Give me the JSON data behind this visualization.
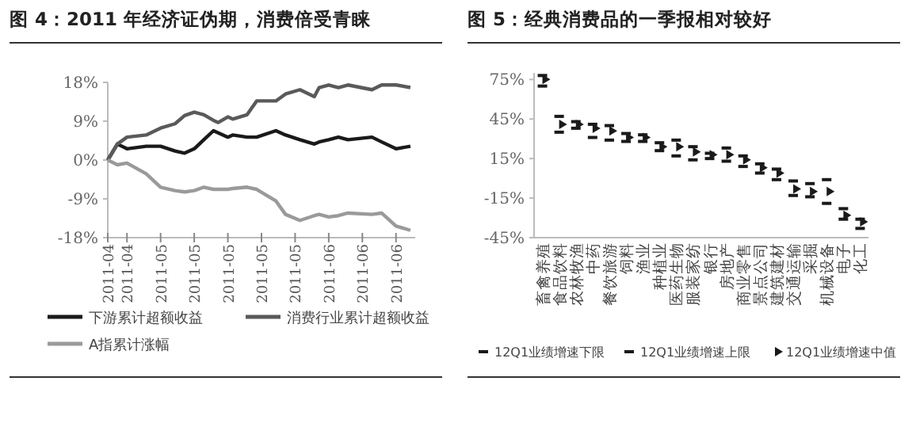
{
  "chart_data": [
    {
      "type": "line",
      "title": "图 4：2011 年经济证伪期，消费倍受青睐",
      "x": [
        "2011-04-21",
        "2011-04-23",
        "2011-04-25",
        "2011-04-29",
        "2011-05-02",
        "2011-05-05",
        "2011-05-07",
        "2011-05-09",
        "2011-05-11",
        "2011-05-13",
        "2011-05-14",
        "2011-05-16",
        "2011-05-17",
        "2011-05-20",
        "2011-05-22",
        "2011-05-26",
        "2011-05-28",
        "2011-05-31",
        "2011-06-03",
        "2011-06-04",
        "2011-06-06",
        "2011-06-08",
        "2011-06-10",
        "2011-06-15",
        "2011-06-17",
        "2011-06-20",
        "2011-06-23"
      ],
      "xlim": [
        "2011-04-21",
        "2011-06-24"
      ],
      "xticks": [
        {
          "value": "2011-04-21",
          "label": "2011-04"
        },
        {
          "value": "2011-04-25",
          "label": "2011-04"
        },
        {
          "value": "2011-05-02",
          "label": "2011-05"
        },
        {
          "value": "2011-05-09",
          "label": "2011-05"
        },
        {
          "value": "2011-05-16",
          "label": "2011-05"
        },
        {
          "value": "2011-05-23",
          "label": "2011-05"
        },
        {
          "value": "2011-05-30",
          "label": "2011-05"
        },
        {
          "value": "2011-06-06",
          "label": "2011-06"
        },
        {
          "value": "2011-06-13",
          "label": "2011-06"
        },
        {
          "value": "2011-06-20",
          "label": "2011-06"
        }
      ],
      "ylim": [
        -18,
        18
      ],
      "yticks": [
        {
          "value": 18,
          "label": "18%"
        },
        {
          "value": 9,
          "label": "9%"
        },
        {
          "value": 0,
          "label": "0%"
        },
        {
          "value": -9,
          "label": "-9%"
        },
        {
          "value": -18,
          "label": "-18%"
        }
      ],
      "legend": "bottom",
      "series": [
        {
          "name": "下游累计超额收益",
          "color": "#1a1a1a",
          "values": [
            0,
            3.7,
            2.6,
            3.2,
            3.2,
            2.1,
            1.6,
            2.6,
            4.7,
            6.8,
            6.3,
            5.3,
            5.8,
            5.3,
            5.3,
            6.8,
            5.8,
            4.7,
            3.7,
            4.2,
            4.7,
            5.3,
            4.7,
            5.3,
            4.2,
            2.6,
            3.2
          ]
        },
        {
          "name": "消费行业累计超额收益",
          "color": "#5a5a5a",
          "values": [
            0,
            3.7,
            5.3,
            5.8,
            7.4,
            8.4,
            10.3,
            11.1,
            10.5,
            9.2,
            8.7,
            10,
            9.5,
            10.5,
            13.7,
            13.7,
            15.3,
            16.3,
            14.7,
            16.8,
            17.4,
            16.8,
            17.4,
            16.3,
            17.4,
            17.4,
            16.8
          ]
        },
        {
          "name": "A指累计涨幅",
          "color": "#9a9a9a",
          "values": [
            0,
            -1.1,
            -0.7,
            -3.2,
            -6.3,
            -7.1,
            -7.4,
            -7.1,
            -6.3,
            -6.8,
            -6.8,
            -6.8,
            -6.6,
            -6.3,
            -6.8,
            -9.5,
            -12.6,
            -14,
            -12.9,
            -12.6,
            -13.2,
            -12.9,
            -12.3,
            -12.6,
            -12.3,
            -15.3,
            -16.3
          ]
        }
      ]
    },
    {
      "type": "scatter",
      "title": "图 5：经典消费品的一季报相对较好",
      "categories": [
        "畜禽养殖",
        "食品饮料",
        "农林牧渔",
        "中药",
        "餐饮旅游",
        "饲料",
        "渔业",
        "种植业",
        "医药生物",
        "服装家纺",
        "银行",
        "房地产",
        "商业零售",
        "景点公司",
        "建筑建材",
        "交通运输",
        "采掘",
        "机械设备",
        "电子",
        "化工"
      ],
      "ylim": [
        -45,
        80
      ],
      "yticks": [
        {
          "value": 75,
          "label": "75%"
        },
        {
          "value": 45,
          "label": "45%"
        },
        {
          "value": 15,
          "label": "15%"
        },
        {
          "value": -15,
          "label": "-15%"
        },
        {
          "value": -45,
          "label": "-45%"
        }
      ],
      "legend": "bottom",
      "series": [
        {
          "name": "12Q1业绩增速下限",
          "color": "#1a1a1a",
          "marker": "square",
          "values": [
            70,
            35,
            38,
            31,
            29,
            28,
            28,
            21,
            17,
            14,
            15,
            13,
            9,
            4,
            -1,
            -13,
            -14,
            -19,
            -31,
            -38
          ]
        },
        {
          "name": "12Q1业绩增速上限",
          "color": "#1a1a1a",
          "marker": "square",
          "values": [
            78,
            47,
            43,
            41,
            40,
            34,
            33,
            27,
            29,
            24,
            19,
            23,
            17,
            11,
            7,
            -2,
            -4,
            -1,
            -23,
            -31
          ]
        },
        {
          "name": "12Q1业绩增速中值",
          "color": "#1a1a1a",
          "marker": "triangle",
          "values": [
            75,
            41,
            41,
            38,
            36,
            31,
            31,
            24,
            24,
            20,
            18,
            18,
            14,
            8,
            4,
            -8,
            -10,
            -10,
            -28,
            -33
          ]
        }
      ]
    }
  ]
}
